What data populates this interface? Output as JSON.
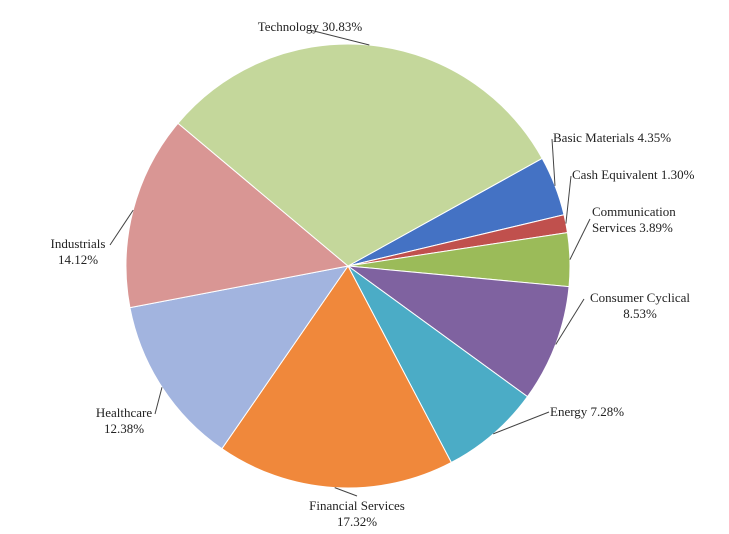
{
  "chart_data": {
    "type": "pie",
    "title": "",
    "legend": "none",
    "slices": [
      {
        "label": "Basic Materials",
        "value": 4.35,
        "value_text": "4.35%",
        "color": "#4472C4"
      },
      {
        "label": "Cash Equivalent",
        "value": 1.3,
        "value_text": "1.30%",
        "color": "#C0504D"
      },
      {
        "label": "Communication Services",
        "value": 3.89,
        "value_text": "3.89%",
        "color": "#9BBB59"
      },
      {
        "label": "Consumer Cyclical",
        "value": 8.53,
        "value_text": "8.53%",
        "color": "#7F62A0"
      },
      {
        "label": "Energy",
        "value": 7.28,
        "value_text": "7.28%",
        "color": "#4BACC6"
      },
      {
        "label": "Financial Services",
        "value": 17.32,
        "value_text": "17.32%",
        "color": "#F0883B"
      },
      {
        "label": "Healthcare",
        "value": 12.38,
        "value_text": "12.38%",
        "color": "#A2B4DF"
      },
      {
        "label": "Industrials",
        "value": 14.12,
        "value_text": "14.12%",
        "color": "#D99694"
      },
      {
        "label": "Technology",
        "value": 30.83,
        "value_text": "30.83%",
        "color": "#C4D79B"
      }
    ]
  }
}
